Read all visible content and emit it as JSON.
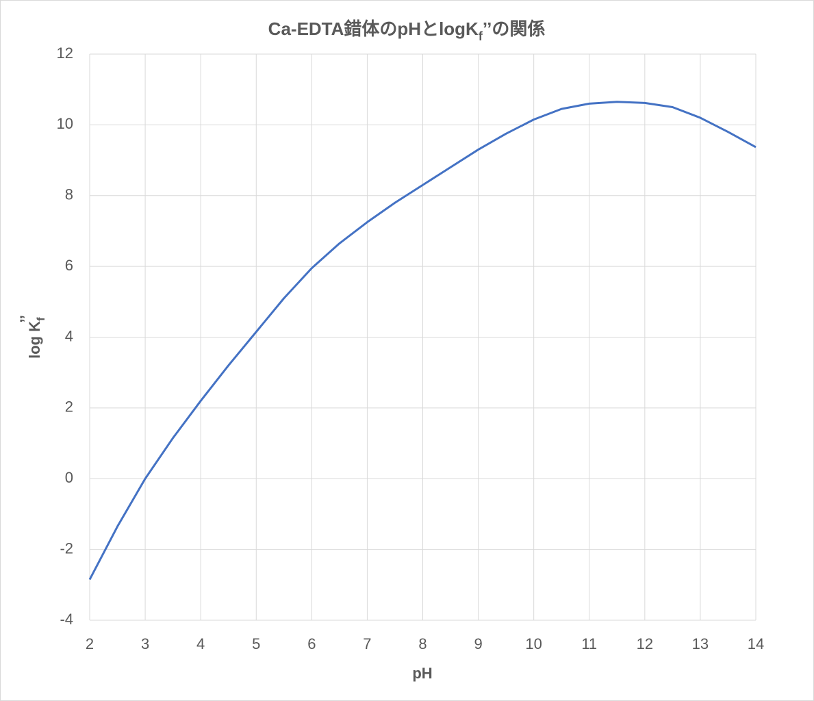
{
  "chart_data": {
    "type": "line",
    "title": [
      "Ca-EDTA錯体のpHとlogK",
      "f",
      "’’の関係"
    ],
    "x_label": "pH",
    "y_label": [
      "log K",
      "f",
      "’’"
    ],
    "x": [
      2,
      2.5,
      3,
      3.5,
      4,
      4.5,
      5,
      5.5,
      6,
      6.5,
      7,
      7.5,
      8,
      8.5,
      9,
      9.5,
      10,
      10.5,
      11,
      11.5,
      12,
      12.5,
      13,
      13.5,
      14
    ],
    "series": [
      {
        "color": "#4472c4",
        "values": [
          -2.85,
          -1.35,
          0,
          1.15,
          2.2,
          3.2,
          4.15,
          5.1,
          5.95,
          6.65,
          7.25,
          7.8,
          8.3,
          8.8,
          9.3,
          9.75,
          10.15,
          10.45,
          10.6,
          10.65,
          10.62,
          10.5,
          10.2,
          9.8,
          9.37
        ]
      }
    ],
    "xlim": [
      2,
      14
    ],
    "ylim": [
      -4,
      12
    ],
    "xticks": [
      2,
      3,
      4,
      5,
      6,
      7,
      8,
      9,
      10,
      11,
      12,
      13,
      14
    ],
    "yticks": [
      -4,
      -2,
      0,
      2,
      4,
      6,
      8,
      10,
      12
    ],
    "grid": true
  }
}
